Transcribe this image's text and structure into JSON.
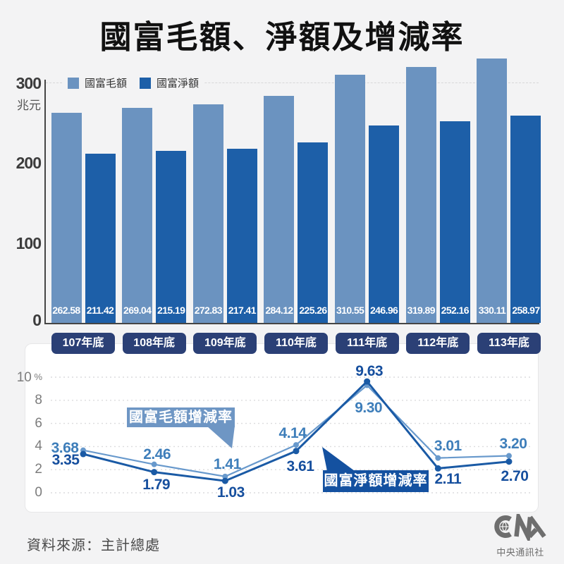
{
  "title": "國富毛額、淨額及增減率",
  "source": "資料來源：主計總處",
  "logo": {
    "caption": "中央通訊社"
  },
  "colors": {
    "background": "#f3f3f4",
    "gross_bar": "#6b93c0",
    "net_bar": "#1d5fa8",
    "category_pill": "#2b4076",
    "gross_line": "#6899cc",
    "net_line": "#1a5aa5",
    "gross_label": "#3e7eba",
    "net_label": "#164f9e"
  },
  "legend": {
    "gross": "國富毛額",
    "net": "國富淨額"
  },
  "callouts": {
    "gross": "國富毛額增減率",
    "net": "國富淨額增減率"
  },
  "chart_data": [
    {
      "type": "bar",
      "title": "國富毛額、淨額及增減率",
      "unit_label": "兆元",
      "categories": [
        "107年底",
        "108年底",
        "109年底",
        "110年底",
        "111年底",
        "112年底",
        "113年底"
      ],
      "series": [
        {
          "name": "國富毛額",
          "color": "#6b93c0",
          "values": [
            262.58,
            269.04,
            272.83,
            284.12,
            310.55,
            319.89,
            330.11
          ]
        },
        {
          "name": "國富淨額",
          "color": "#1d5fa8",
          "values": [
            211.42,
            215.19,
            217.41,
            225.26,
            246.96,
            252.16,
            258.97
          ]
        }
      ],
      "ylim": [
        0,
        300
      ],
      "yticks": [
        300,
        200,
        100,
        0
      ],
      "grid": false,
      "legend_position": "top-left"
    },
    {
      "type": "line",
      "unit_label": "%",
      "categories": [
        "107年底",
        "108年底",
        "109年底",
        "110年底",
        "111年底",
        "112年底",
        "113年底"
      ],
      "series": [
        {
          "name": "國富毛額增減率",
          "color": "#6899cc",
          "values": [
            3.68,
            2.46,
            1.41,
            4.14,
            9.3,
            3.01,
            3.2
          ]
        },
        {
          "name": "國富淨額增減率",
          "color": "#1a5aa5",
          "values": [
            3.35,
            1.79,
            1.03,
            3.61,
            9.63,
            2.11,
            2.7
          ]
        }
      ],
      "ylim": [
        0,
        10
      ],
      "yticks": [
        10,
        8,
        6,
        4,
        2,
        0
      ],
      "grid": true,
      "legend_position": "inline-callouts"
    }
  ]
}
